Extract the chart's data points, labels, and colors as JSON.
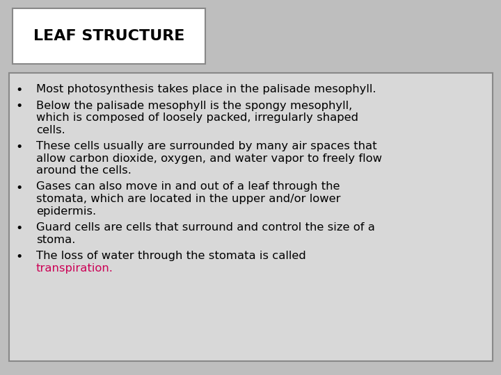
{
  "title": "LEAF STRUCTURE",
  "background_color": "#bebebe",
  "title_box_facecolor": "#ffffff",
  "title_box_edgecolor": "#888888",
  "content_box_facecolor": "#d8d8d8",
  "content_box_edgecolor": "#888888",
  "title_font_size": 16,
  "body_font_size": 11.8,
  "title_color": "#000000",
  "body_color": "#000000",
  "highlight_color": "#cc0055",
  "bullet_points": [
    {
      "lines": [
        "Most photosynthesis takes place in the palisade mesophyll."
      ],
      "highlight_line_index": -1
    },
    {
      "lines": [
        "Below the palisade mesophyll is the spongy mesophyll,",
        "which is composed of loosely packed, irregularly shaped",
        "cells."
      ],
      "highlight_line_index": -1
    },
    {
      "lines": [
        "These cells usually are surrounded by many air spaces that",
        "allow carbon dioxide, oxygen, and water vapor to freely flow",
        "around the cells."
      ],
      "highlight_line_index": -1
    },
    {
      "lines": [
        "Gases can also move in and out of a leaf through the",
        "stomata, which are located in the upper and/or lower",
        "epidermis."
      ],
      "highlight_line_index": -1
    },
    {
      "lines": [
        "Guard cells are cells that surround and control the size of a",
        "stoma."
      ],
      "highlight_line_index": -1
    },
    {
      "lines": [
        "The loss of water through the stomata is called",
        "transpiration."
      ],
      "highlight_line_index": 1
    }
  ]
}
